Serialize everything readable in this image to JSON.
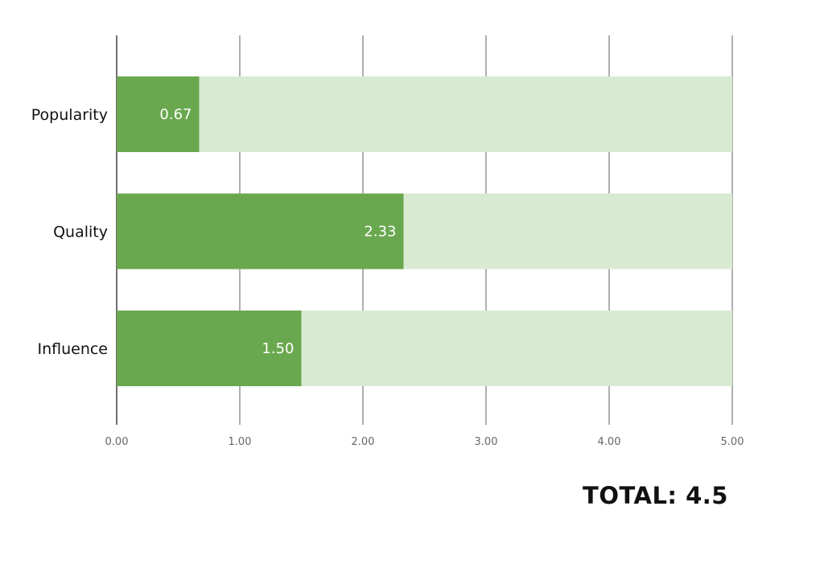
{
  "chart_data": {
    "type": "bar",
    "orientation": "horizontal",
    "stacked": true,
    "categories": [
      "Popularity",
      "Quality",
      "Influence"
    ],
    "series": [
      {
        "values": [
          0.67,
          2.33,
          1.5
        ],
        "color": "#6aa84f"
      },
      {
        "values": [
          4.33,
          2.67,
          3.5
        ],
        "color": "#d9ead3"
      }
    ],
    "value_labels": [
      "0.67",
      "2.33",
      "1.50"
    ],
    "xlim": [
      0,
      5
    ],
    "xticks": [
      "0.00",
      "1.00",
      "2.00",
      "3.00",
      "4.00",
      "5.00"
    ],
    "grid": true,
    "legend": "none",
    "title": "",
    "xlabel": "",
    "ylabel": ""
  },
  "total_label": "TOTAL: 4.5"
}
